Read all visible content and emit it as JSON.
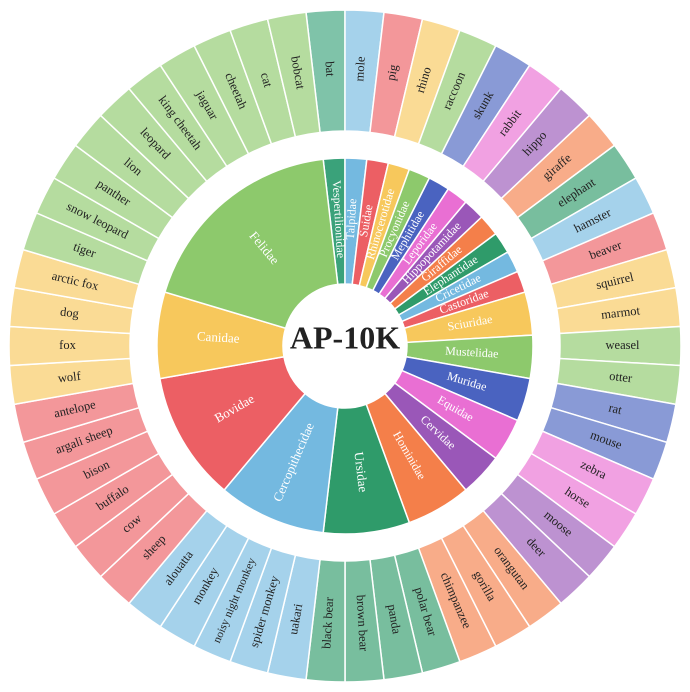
{
  "chart_data": {
    "type": "sunburst",
    "title": "AP-10K",
    "families": [
      {
        "name": "Vespertilionidae",
        "color": "#3aa27a",
        "species": [
          "bat"
        ]
      },
      {
        "name": "Talpidae",
        "color": "#74b9e0",
        "species": [
          "mole"
        ]
      },
      {
        "name": "Suidae",
        "color": "#ec5f64",
        "species": [
          "pig"
        ]
      },
      {
        "name": "Rhinocerotidae",
        "color": "#f7c85c",
        "species": [
          "rhino"
        ]
      },
      {
        "name": "Procyonidae",
        "color": "#8dc96c",
        "species": [
          "raccoon"
        ]
      },
      {
        "name": "Mephitidae",
        "color": "#4a63c0",
        "species": [
          "skunk"
        ]
      },
      {
        "name": "Leporidae",
        "color": "#e96fd3",
        "species": [
          "rabbit"
        ]
      },
      {
        "name": "Hippopotamidae",
        "color": "#9a57b8",
        "species": [
          "hippo"
        ]
      },
      {
        "name": "Giraffidae",
        "color": "#f47f4a",
        "species": [
          "giraffe"
        ]
      },
      {
        "name": "Elephantidae",
        "color": "#2f9b6a",
        "species": [
          "elephant"
        ]
      },
      {
        "name": "Cricetidae",
        "color": "#74b9e0",
        "species": [
          "hamster"
        ]
      },
      {
        "name": "Castoridae",
        "color": "#ec5f64",
        "species": [
          "beaver"
        ]
      },
      {
        "name": "Sciuridae",
        "color": "#f7c85c",
        "species": [
          "squirrel",
          "marmot"
        ]
      },
      {
        "name": "Mustelidae",
        "color": "#8dc96c",
        "species": [
          "weasel",
          "otter"
        ]
      },
      {
        "name": "Muridae",
        "color": "#4a63c0",
        "species": [
          "rat",
          "mouse"
        ]
      },
      {
        "name": "Equidae",
        "color": "#e96fd3",
        "species": [
          "zebra",
          "horse"
        ]
      },
      {
        "name": "Cervidae",
        "color": "#9a57b8",
        "species": [
          "moose",
          "deer"
        ]
      },
      {
        "name": "Hominidae",
        "color": "#f47f4a",
        "species": [
          "orangutan",
          "gorilla",
          "chimpanzee"
        ]
      },
      {
        "name": "Ursidae",
        "color": "#2f9b6a",
        "species": [
          "polar bear",
          "panda",
          "brown bear",
          "black bear"
        ]
      },
      {
        "name": "Cercopithecidae",
        "color": "#74b9e0",
        "species": [
          "uakari",
          "spider monkey",
          "noisy night monkey",
          "monkey",
          "alouatta"
        ]
      },
      {
        "name": "Bovidae",
        "color": "#ec5f64",
        "species": [
          "sheep",
          "cow",
          "buffalo",
          "bison",
          "argali sheep",
          "antelope"
        ]
      },
      {
        "name": "Canidae",
        "color": "#f7c85c",
        "species": [
          "wolf",
          "fox",
          "dog",
          "arctic fox"
        ]
      },
      {
        "name": "Felidae",
        "color": "#8dc96c",
        "species": [
          "tiger",
          "snow leopard",
          "panther",
          "lion",
          "leopard",
          "king cheetah",
          "jaguar",
          "cheetah",
          "cat",
          "bobcat"
        ]
      }
    ]
  }
}
